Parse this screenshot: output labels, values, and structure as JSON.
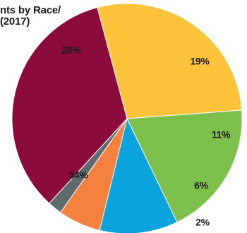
{
  "chart_data": {
    "type": "pie",
    "title_lines": [
      "nts by Race/",
      "(2017)"
    ],
    "slices": [
      {
        "value": 28,
        "label": "28%",
        "color": "#fcc33b"
      },
      {
        "value": 19,
        "label": "19%",
        "color": "#7cc04b"
      },
      {
        "value": 11,
        "label": "11%",
        "color": "#0aa3de"
      },
      {
        "value": 6,
        "label": "6%",
        "color": "#f5813f"
      },
      {
        "value": 2,
        "label": "2%",
        "color": "#5f6a6e"
      },
      {
        "value": 34,
        "label": "34%",
        "color": "#8b0b3c"
      }
    ]
  }
}
